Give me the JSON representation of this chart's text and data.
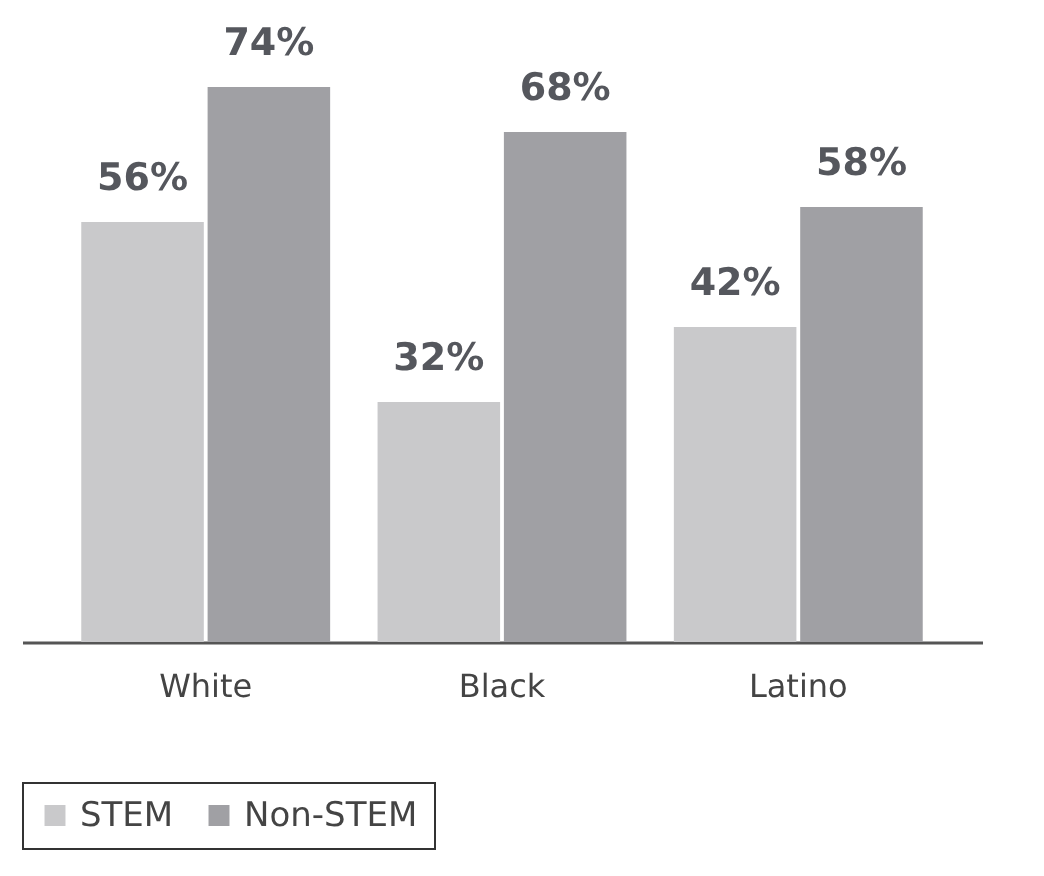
{
  "chart_data": {
    "type": "bar",
    "categories": [
      "White",
      "Black",
      "Latino"
    ],
    "series": [
      {
        "name": "STEM",
        "color": "#c9c9cb",
        "values": [
          56,
          32,
          42
        ],
        "value_labels": [
          "56%",
          "32%",
          "42%"
        ]
      },
      {
        "name": "Non-STEM",
        "color": "#a0a0a4",
        "values": [
          74,
          68,
          58
        ],
        "value_labels": [
          "74%",
          "68%",
          "58%"
        ]
      }
    ],
    "legend": "bottom",
    "grid": false,
    "tick_labels": "x"
  }
}
